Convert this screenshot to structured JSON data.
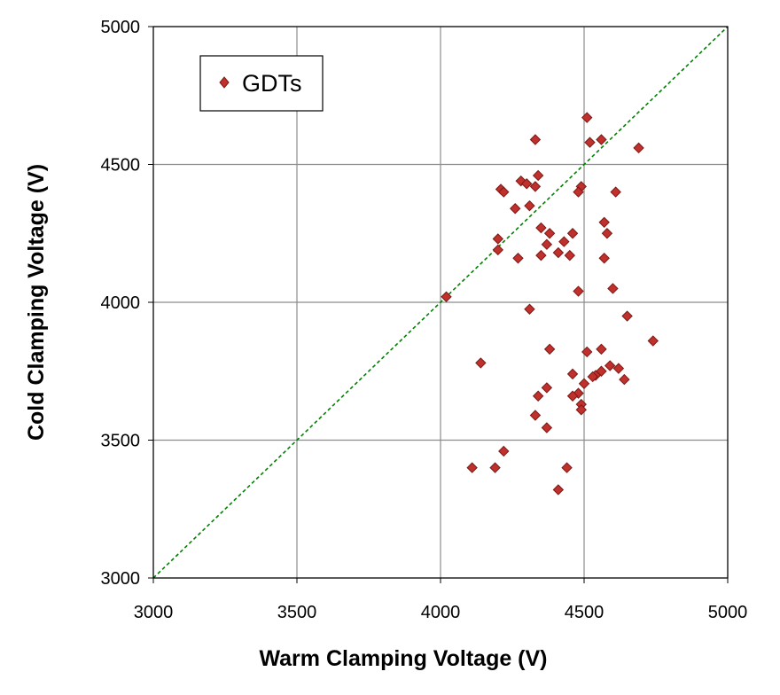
{
  "chart_data": {
    "type": "scatter",
    "title": "",
    "xlabel": "Warm Clamping Voltage (V)",
    "ylabel": "Cold Clamping Voltage  (V)",
    "xlim": [
      3000,
      5000
    ],
    "ylim": [
      3000,
      5000
    ],
    "xticks": [
      "3000",
      "3500",
      "4000",
      "4500",
      "5000"
    ],
    "yticks": [
      "3000",
      "3500",
      "4000",
      "4500",
      "5000"
    ],
    "grid": true,
    "legend_position": "top-left",
    "reference_line": {
      "name": "y = x",
      "from": [
        3000,
        3000
      ],
      "to": [
        5000,
        5000
      ],
      "style": "dashed",
      "color": "#008000"
    },
    "series": [
      {
        "name": "GDTs",
        "marker": "diamond",
        "color": "#c0302c",
        "edge_color": "#7a1a16",
        "points": [
          [
            4020,
            4020
          ],
          [
            4510,
            4670
          ],
          [
            4330,
            4590
          ],
          [
            4520,
            4580
          ],
          [
            4560,
            4590
          ],
          [
            4690,
            4560
          ],
          [
            4340,
            4460
          ],
          [
            4280,
            4440
          ],
          [
            4300,
            4430
          ],
          [
            4330,
            4420
          ],
          [
            4490,
            4420
          ],
          [
            4210,
            4410
          ],
          [
            4220,
            4400
          ],
          [
            4480,
            4400
          ],
          [
            4610,
            4400
          ],
          [
            4310,
            4350
          ],
          [
            4260,
            4340
          ],
          [
            4570,
            4290
          ],
          [
            4350,
            4270
          ],
          [
            4580,
            4250
          ],
          [
            4380,
            4250
          ],
          [
            4460,
            4250
          ],
          [
            4200,
            4230
          ],
          [
            4430,
            4220
          ],
          [
            4370,
            4210
          ],
          [
            4200,
            4190
          ],
          [
            4410,
            4180
          ],
          [
            4450,
            4170
          ],
          [
            4350,
            4170
          ],
          [
            4270,
            4160
          ],
          [
            4570,
            4160
          ],
          [
            4600,
            4050
          ],
          [
            4480,
            4040
          ],
          [
            4310,
            3975
          ],
          [
            4650,
            3950
          ],
          [
            4740,
            3860
          ],
          [
            4380,
            3830
          ],
          [
            4510,
            3820
          ],
          [
            4560,
            3830
          ],
          [
            4140,
            3780
          ],
          [
            4590,
            3770
          ],
          [
            4620,
            3760
          ],
          [
            4560,
            3750
          ],
          [
            4540,
            3735
          ],
          [
            4460,
            3740
          ],
          [
            4530,
            3730
          ],
          [
            4640,
            3720
          ],
          [
            4500,
            3705
          ],
          [
            4370,
            3690
          ],
          [
            4480,
            3670
          ],
          [
            4340,
            3660
          ],
          [
            4460,
            3660
          ],
          [
            4490,
            3630
          ],
          [
            4490,
            3610
          ],
          [
            4330,
            3590
          ],
          [
            4370,
            3545
          ],
          [
            4220,
            3460
          ],
          [
            4110,
            3400
          ],
          [
            4190,
            3400
          ],
          [
            4440,
            3400
          ],
          [
            4410,
            3320
          ]
        ]
      }
    ]
  }
}
